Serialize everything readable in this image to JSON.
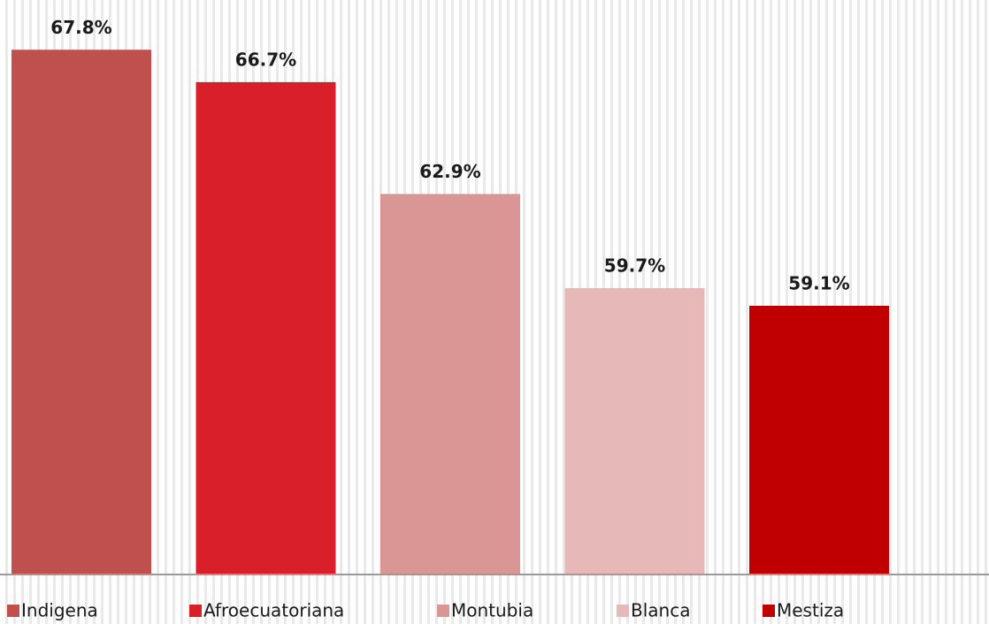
{
  "chart_data": {
    "type": "bar",
    "categories": [
      null
    ],
    "series": [
      {
        "name": "Indigena",
        "color": "#c0504d",
        "values": [
          67.8
        ],
        "value_labels": [
          "67.8%"
        ]
      },
      {
        "name": "Afroecuatoriana",
        "color": "#d9202a",
        "values": [
          66.7
        ],
        "value_labels": [
          "66.7%"
        ]
      },
      {
        "name": "Montubia",
        "color": "#d99694",
        "values": [
          62.9
        ],
        "value_labels": [
          "62.9%"
        ]
      },
      {
        "name": "Blanca",
        "color": "#e6b9b8",
        "values": [
          59.7
        ],
        "value_labels": [
          "59.7%"
        ]
      },
      {
        "name": "Mestiza",
        "color": "#c00000",
        "values": [
          59.1
        ],
        "value_labels": [
          "59.1%"
        ]
      }
    ],
    "ylim": [
      50,
      70
    ],
    "legend": "bottom"
  }
}
